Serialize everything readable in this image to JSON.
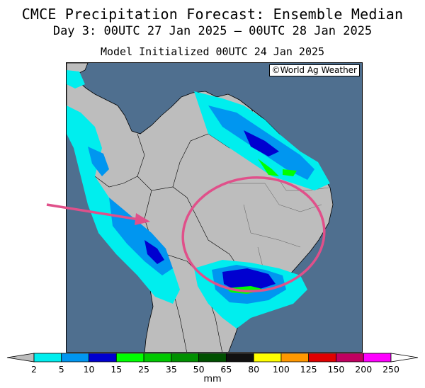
{
  "title": "CMCE Precipitation Forecast: Ensemble Median",
  "valid_period": "Day 3: 00UTC 27 Jan 2025 — 00UTC 28 Jan 2025",
  "init_time": "Model Initialized 00UTC 24 Jan 2025",
  "credit": "©World Ag Weather",
  "colorbar": {
    "units": "mm",
    "ticks": [
      "2",
      "5",
      "10",
      "15",
      "25",
      "35",
      "50",
      "65",
      "80",
      "100",
      "125",
      "150",
      "200",
      "250"
    ],
    "colors": [
      "#00eeee",
      "#0096f0",
      "#0000d0",
      "#00ff00",
      "#00c800",
      "#009000",
      "#005000",
      "#111111",
      "#ffff00",
      "#ff9800",
      "#e00000",
      "#c00060",
      "#ff00ff",
      "#9040c0"
    ]
  }
}
